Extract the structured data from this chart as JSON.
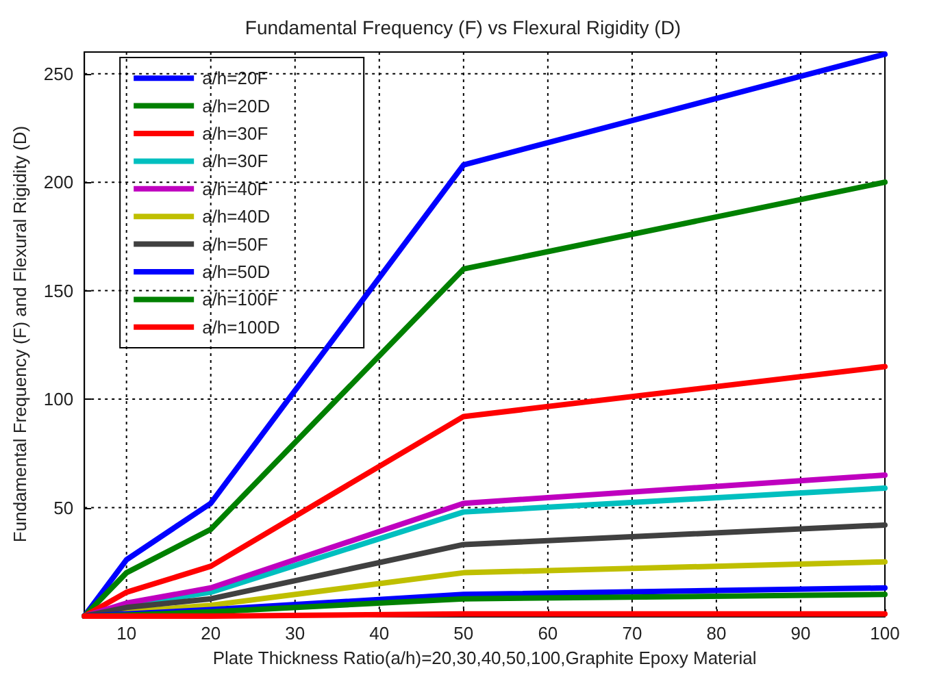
{
  "chart_data": {
    "type": "line",
    "title": "Fundamental Frequency (F) vs Flexural Rigidity (D)",
    "xlabel": "Plate Thickness Ratio(a/h)=20,30,40,50,100,Graphite Epoxy Material",
    "ylabel": "Fundamental Frequency (F) and Flexural Rigidity (D)",
    "x": [
      5,
      10,
      20,
      50,
      100
    ],
    "series": [
      {
        "name": "a/h=20F",
        "color": "#0000ff",
        "values": [
          0,
          26,
          52,
          208,
          259
        ]
      },
      {
        "name": "a/h=20D",
        "color": "#008000",
        "values": [
          0,
          20,
          40,
          160,
          200
        ]
      },
      {
        "name": "a/h=30F",
        "color": "#ff0000",
        "values": [
          0,
          11,
          23,
          92,
          115
        ]
      },
      {
        "name": "a/h=30F",
        "color": "#00bfbf",
        "values": [
          0,
          5,
          11,
          48,
          59
        ]
      },
      {
        "name": "a/h=40F",
        "color": "#bf00bf",
        "values": [
          0,
          6,
          13,
          52,
          65
        ]
      },
      {
        "name": "a/h=40D",
        "color": "#bfbf00",
        "values": [
          0,
          2,
          5,
          20,
          25
        ]
      },
      {
        "name": "a/h=50F",
        "color": "#404040",
        "values": [
          0,
          4,
          8,
          33,
          42
        ]
      },
      {
        "name": "a/h=50D",
        "color": "#0000ff",
        "values": [
          0,
          1,
          3,
          10,
          13
        ]
      },
      {
        "name": "a/h=100F",
        "color": "#008000",
        "values": [
          0,
          0.5,
          2,
          8,
          10
        ]
      },
      {
        "name": "a/h=100D",
        "color": "#ff0000",
        "values": [
          0,
          0,
          0,
          1,
          1
        ]
      }
    ],
    "xlim": [
      5,
      100
    ],
    "xticks": [
      10,
      20,
      30,
      40,
      50,
      60,
      70,
      80,
      90,
      100
    ],
    "ylim": [
      0,
      260
    ],
    "yticks": [
      50,
      100,
      150,
      200,
      250
    ],
    "grid": true,
    "legend": "top left",
    "marker": "none",
    "line_style": "solid"
  }
}
